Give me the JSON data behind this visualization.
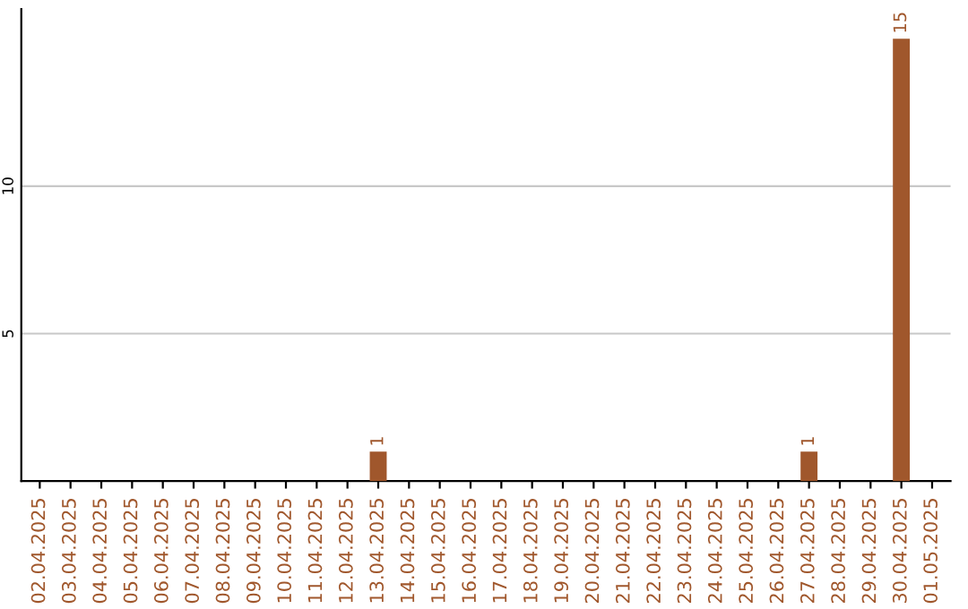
{
  "chart_data": {
    "type": "bar",
    "categories": [
      "02.04.2025",
      "03.04.2025",
      "04.04.2025",
      "05.04.2025",
      "06.04.2025",
      "07.04.2025",
      "08.04.2025",
      "09.04.2025",
      "10.04.2025",
      "11.04.2025",
      "12.04.2025",
      "13.04.2025",
      "14.04.2025",
      "15.04.2025",
      "16.04.2025",
      "17.04.2025",
      "18.04.2025",
      "19.04.2025",
      "20.04.2025",
      "21.04.2025",
      "22.04.2025",
      "23.04.2025",
      "24.04.2025",
      "25.04.2025",
      "26.04.2025",
      "27.04.2025",
      "28.04.2025",
      "29.04.2025",
      "30.04.2025",
      "01.05.2025"
    ],
    "values": [
      0,
      0,
      0,
      0,
      0,
      0,
      0,
      0,
      0,
      0,
      0,
      1,
      0,
      0,
      0,
      0,
      0,
      0,
      0,
      0,
      0,
      0,
      0,
      0,
      0,
      1,
      0,
      0,
      15,
      0
    ],
    "value_labels": [
      null,
      null,
      null,
      null,
      null,
      null,
      null,
      null,
      null,
      null,
      null,
      "1",
      null,
      null,
      null,
      null,
      null,
      null,
      null,
      null,
      null,
      null,
      null,
      null,
      null,
      "1",
      null,
      null,
      "15",
      null
    ],
    "color": "#a0572c",
    "ylim": [
      0,
      16
    ],
    "yticks": [
      5,
      10
    ],
    "grid": "y"
  }
}
